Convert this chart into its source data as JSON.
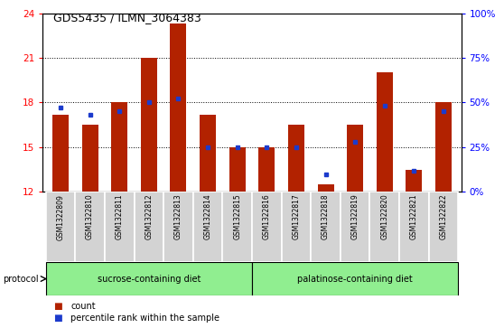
{
  "title": "GDS5435 / ILMN_3064383",
  "samples": [
    "GSM1322809",
    "GSM1322810",
    "GSM1322811",
    "GSM1322812",
    "GSM1322813",
    "GSM1322814",
    "GSM1322815",
    "GSM1322816",
    "GSM1322817",
    "GSM1322818",
    "GSM1322819",
    "GSM1322820",
    "GSM1322821",
    "GSM1322822"
  ],
  "count_values": [
    17.2,
    16.5,
    18.0,
    21.0,
    23.3,
    17.2,
    15.0,
    15.0,
    16.5,
    12.5,
    16.5,
    20.0,
    13.5,
    18.0
  ],
  "percentile_values": [
    47,
    43,
    45,
    50,
    52,
    25,
    25,
    25,
    25,
    10,
    28,
    48,
    12,
    45
  ],
  "ylim_left": [
    12,
    24
  ],
  "ylim_right": [
    0,
    100
  ],
  "yticks_left": [
    12,
    15,
    18,
    21,
    24
  ],
  "yticks_right": [
    0,
    25,
    50,
    75,
    100
  ],
  "bar_color": "#b22200",
  "dot_color": "#1c3bcc",
  "bar_width": 0.55,
  "sucrose_samples": 7,
  "palatinose_samples": 7,
  "protocol_color": "#90ee90",
  "fig_width": 5.58,
  "fig_height": 3.63,
  "dpi": 100
}
